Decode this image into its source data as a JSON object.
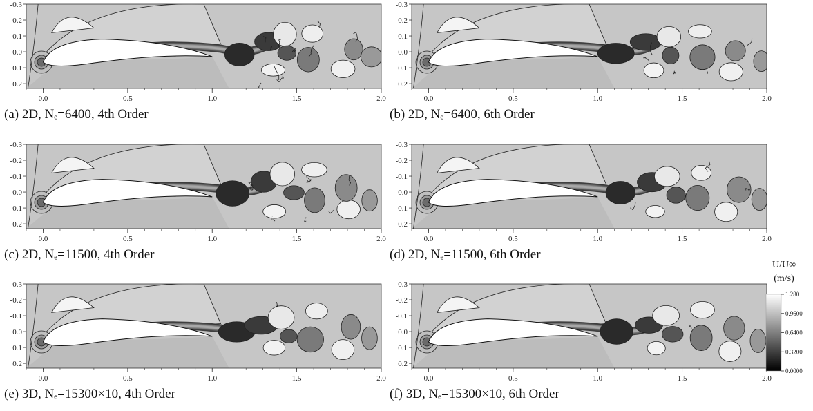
{
  "panels": [
    {
      "id": "a",
      "caption": "(a) 2D, Nₑ=6400, 4th Order",
      "noise": 1.0
    },
    {
      "id": "b",
      "caption": "(b) 2D, Nₑ=6400, 6th Order",
      "noise": 0.45
    },
    {
      "id": "c",
      "caption": "(c) 2D, Nₑ=11500, 4th Order",
      "noise": 0.75
    },
    {
      "id": "d",
      "caption": "(d) 2D, Nₑ=11500, 6th Order",
      "noise": 0.3
    },
    {
      "id": "e",
      "caption": "(e) 3D, Nₑ=15300×10, 4th Order",
      "noise": 0.1
    },
    {
      "id": "f",
      "caption": "(f) 3D, Nₑ=15300×10, 6th Order",
      "noise": 0.05
    }
  ],
  "axes": {
    "x_ticks": [
      "0.0",
      "0.5",
      "1.0",
      "1.5",
      "2.0"
    ],
    "y_ticks": [
      "-0.3",
      "-0.2",
      "-0.1",
      "0.0",
      "0.1",
      "0.2"
    ],
    "x_range": [
      -0.1,
      2.0
    ],
    "y_range": [
      -0.3,
      0.23
    ]
  },
  "colorbar": {
    "title": "U/U∞",
    "unit": "(m/s)",
    "ticks": [
      "1.280",
      "0.9600",
      "0.6400",
      "0.3200",
      "0.0000"
    ],
    "range": [
      0.0,
      1.28
    ]
  }
}
